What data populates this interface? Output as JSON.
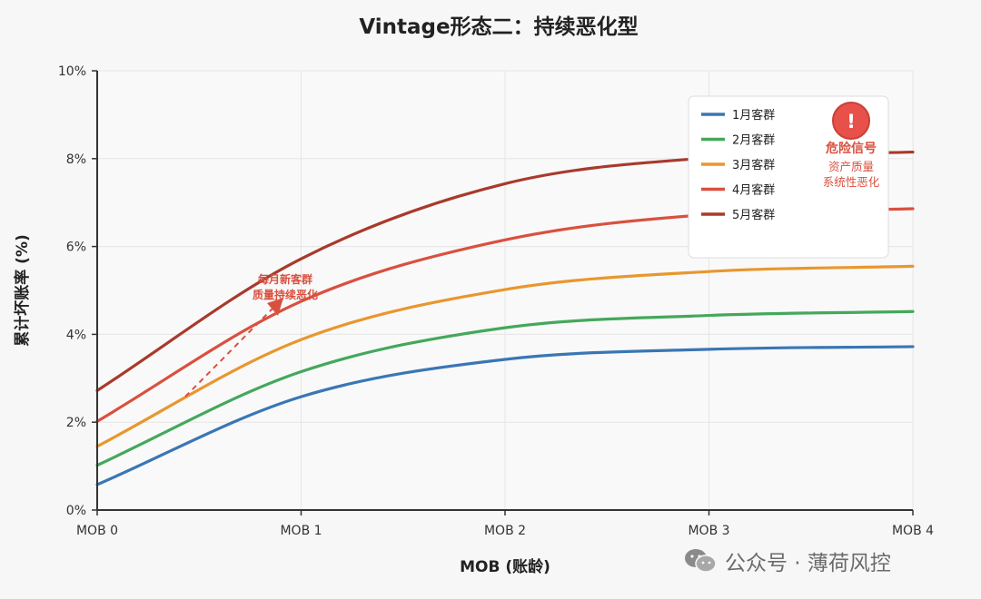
{
  "chart_data": {
    "type": "line",
    "title": "Vintage形态二：持续恶化型",
    "xlabel": "MOB (账龄)",
    "ylabel": "累计坏账率 (%)",
    "categories": [
      "MOB 0",
      "MOB 1",
      "MOB 2",
      "MOB 3",
      "MOB 4"
    ],
    "x": [
      0,
      1,
      2,
      3,
      4
    ],
    "ylim": [
      0,
      10
    ],
    "yticks": [
      "0%",
      "2%",
      "4%",
      "6%",
      "8%",
      "10%"
    ],
    "grid": true,
    "legend_position": "top-right",
    "series": [
      {
        "name": "1月客群",
        "color": "#3a76b4",
        "values": [
          0.58,
          2.58,
          3.43,
          3.66,
          3.72
        ]
      },
      {
        "name": "2月客群",
        "color": "#44a85b",
        "values": [
          1.02,
          3.15,
          4.15,
          4.43,
          4.52
        ]
      },
      {
        "name": "3月客群",
        "color": "#e8972e",
        "values": [
          1.45,
          3.88,
          5.02,
          5.43,
          5.55
        ]
      },
      {
        "name": "4月客群",
        "color": "#d9503f",
        "values": [
          2.02,
          4.75,
          6.15,
          6.73,
          6.86
        ]
      },
      {
        "name": "5月客群",
        "color": "#a83a2c",
        "values": [
          2.72,
          5.72,
          7.43,
          8.02,
          8.15
        ]
      }
    ],
    "annotations": [
      {
        "lines": [
          "每月新客群",
          "质量持续恶化"
        ],
        "color": "#d9503f"
      }
    ],
    "signal": {
      "icon": "exclamation-icon",
      "symbol": "!",
      "title": "危险信号",
      "lines": [
        "资产质量",
        "系统性恶化"
      ],
      "color": "#d9503f"
    }
  },
  "watermark": {
    "icon": "wechat-icon",
    "text": "公众号 · 薄荷风控"
  }
}
